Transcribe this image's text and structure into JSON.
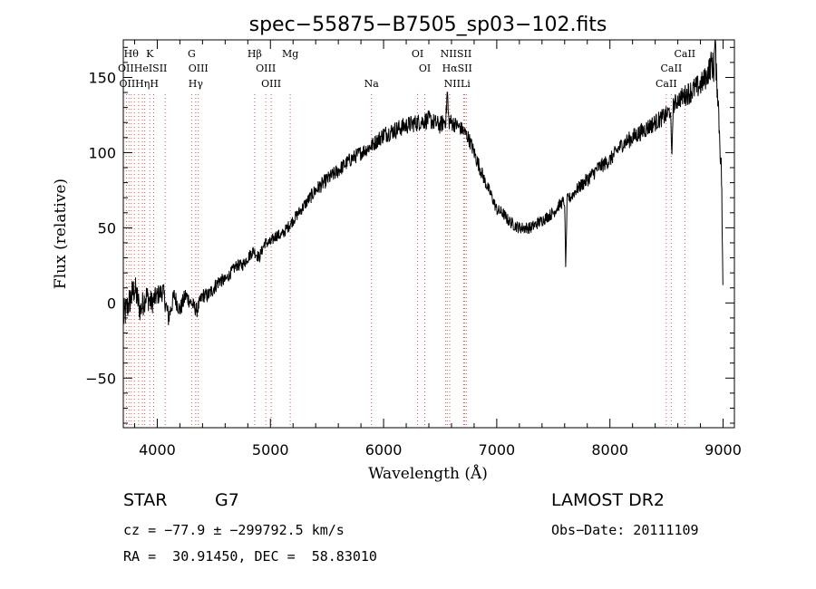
{
  "chart_data": {
    "type": "line",
    "title": "spec−55875−B7505_sp03−102.fits",
    "xlabel": "Wavelength (Å)",
    "ylabel": "Flux (relative)",
    "xlim": [
      3700,
      9100
    ],
    "ylim": [
      -83,
      175
    ],
    "x_ticks": [
      4000,
      5000,
      6000,
      7000,
      8000,
      9000
    ],
    "y_ticks": [
      -50,
      0,
      50,
      100,
      150
    ],
    "y_tick_labels": [
      "−50",
      "0",
      "50",
      "100",
      "150"
    ],
    "grid": false,
    "series": [
      {
        "x": [
          3700,
          3750,
          3800,
          3850,
          3900,
          3950,
          4000,
          4050,
          4100,
          4150,
          4200,
          4250,
          4300,
          4350,
          4400,
          4450,
          4500,
          4550,
          4600,
          4650,
          4700,
          4750,
          4800,
          4850,
          4900,
          4950,
          5000,
          5050,
          5100,
          5150,
          5200,
          5300,
          5400,
          5500,
          5600,
          5700,
          5800,
          5900,
          6000,
          6100,
          6200,
          6300,
          6400,
          6500,
          6550,
          6600,
          6650,
          6700,
          6750,
          6800,
          6850,
          6900,
          6950,
          7000,
          7050,
          7100,
          7150,
          7200,
          7300,
          7400,
          7500,
          7550,
          7600,
          7650,
          7700,
          7800,
          7900,
          8000,
          8100,
          8200,
          8300,
          8400,
          8500,
          8550,
          8600,
          8700,
          8800,
          8850,
          8900,
          8950,
          9000
        ],
        "y": [
          -10,
          0,
          10,
          -5,
          5,
          0,
          5,
          8,
          -10,
          5,
          -5,
          5,
          0,
          -5,
          5,
          5,
          10,
          15,
          15,
          20,
          25,
          25,
          30,
          35,
          30,
          40,
          40,
          45,
          45,
          50,
          55,
          65,
          75,
          82,
          88,
          95,
          100,
          105,
          112,
          115,
          118,
          120,
          122,
          118,
          122,
          120,
          118,
          115,
          110,
          100,
          90,
          80,
          72,
          62,
          60,
          55,
          52,
          50,
          50,
          55,
          60,
          65,
          68,
          70,
          75,
          82,
          90,
          95,
          105,
          110,
          115,
          120,
          125,
          130,
          135,
          140,
          145,
          150,
          160,
          145,
          60
        ],
        "noise": [
          12,
          10,
          10,
          9,
          9,
          8,
          7,
          7,
          7,
          6,
          6,
          6,
          5,
          5,
          5,
          5,
          5,
          5,
          4,
          4,
          4,
          4,
          4,
          4,
          4,
          4,
          4,
          4,
          4,
          4,
          4,
          4,
          5,
          5,
          5,
          5,
          5,
          5,
          6,
          6,
          6,
          6,
          6,
          6,
          6,
          6,
          5,
          5,
          5,
          5,
          5,
          4,
          4,
          4,
          4,
          4,
          4,
          4,
          4,
          4,
          4,
          4,
          4,
          4,
          4,
          5,
          5,
          5,
          5,
          6,
          6,
          6,
          6,
          6,
          6,
          8,
          8,
          8,
          10,
          10,
          10
        ],
        "features": [
          {
            "wavelength": 7610,
            "depth": -45
          },
          {
            "wavelength": 8546,
            "depth": -35
          },
          {
            "wavelength": 6563,
            "depth": 20
          },
          {
            "wavelength": 8930,
            "depth": 25
          },
          {
            "wavelength": 9000,
            "depth": -70
          }
        ]
      }
    ],
    "spectral_lines": [
      {
        "wavelength": 3727,
        "labels": [
          "OII"
        ]
      },
      {
        "wavelength": 3750,
        "labels": [
          "OII"
        ]
      },
      {
        "wavelength": 3770,
        "labels": [
          "Hθ"
        ]
      },
      {
        "wavelength": 3798,
        "labels": [
          "Hη"
        ]
      },
      {
        "wavelength": 3835,
        "labels": [
          "Hη"
        ]
      },
      {
        "wavelength": 3869,
        "labels": [
          "HeI"
        ]
      },
      {
        "wavelength": 3889,
        "labels": [
          "HeI"
        ]
      },
      {
        "wavelength": 3934,
        "labels": [
          "K"
        ]
      },
      {
        "wavelength": 3968,
        "labels": [
          "H"
        ]
      },
      {
        "wavelength": 4070,
        "labels": [
          "SII"
        ]
      },
      {
        "wavelength": 4304,
        "labels": [
          "G"
        ]
      },
      {
        "wavelength": 4340,
        "labels": [
          "Hγ"
        ]
      },
      {
        "wavelength": 4363,
        "labels": [
          "OIII"
        ]
      },
      {
        "wavelength": 4861,
        "labels": [
          "Hβ"
        ]
      },
      {
        "wavelength": 4959,
        "labels": [
          "OIII"
        ]
      },
      {
        "wavelength": 5007,
        "labels": [
          "OIII"
        ]
      },
      {
        "wavelength": 5175,
        "labels": [
          "Mg"
        ]
      },
      {
        "wavelength": 5893,
        "labels": [
          "Na"
        ]
      },
      {
        "wavelength": 6300,
        "labels": [
          "OI"
        ]
      },
      {
        "wavelength": 6364,
        "labels": [
          "OI"
        ]
      },
      {
        "wavelength": 6548,
        "labels": [
          "NII"
        ]
      },
      {
        "wavelength": 6563,
        "labels": [
          "Hα"
        ]
      },
      {
        "wavelength": 6584,
        "labels": [
          "NII"
        ]
      },
      {
        "wavelength": 6708,
        "labels": [
          "Li"
        ]
      },
      {
        "wavelength": 6717,
        "labels": [
          "SII"
        ]
      },
      {
        "wavelength": 6731,
        "labels": [
          "SII"
        ]
      },
      {
        "wavelength": 8498,
        "labels": [
          "CaII"
        ]
      },
      {
        "wavelength": 8542,
        "labels": [
          "CaII"
        ]
      },
      {
        "wavelength": 8662,
        "labels": [
          "CaII"
        ]
      }
    ],
    "line_label_rows": [
      [
        {
          "text": "Hθ",
          "wavelength": 3770
        },
        {
          "text": "K",
          "wavelength": 3934
        },
        {
          "text": "G",
          "wavelength": 4304
        },
        {
          "text": "Hβ",
          "wavelength": 4861
        },
        {
          "text": "Mg",
          "wavelength": 5175
        },
        {
          "text": "OI",
          "wavelength": 6300
        },
        {
          "text": "NIISII",
          "wavelength": 6640
        },
        {
          "text": "CaII",
          "wavelength": 8662
        }
      ],
      [
        {
          "text": "OIIHeISII",
          "wavelength": 3870
        },
        {
          "text": "OIII",
          "wavelength": 4363
        },
        {
          "text": "OIII",
          "wavelength": 4959
        },
        {
          "text": "OI",
          "wavelength": 6364
        },
        {
          "text": "HαSII",
          "wavelength": 6650
        },
        {
          "text": "CaII",
          "wavelength": 8542
        }
      ],
      [
        {
          "text": "OIIHηH",
          "wavelength": 3838
        },
        {
          "text": "Hγ",
          "wavelength": 4340
        },
        {
          "text": "OIII",
          "wavelength": 5007
        },
        {
          "text": "Na",
          "wavelength": 5893
        },
        {
          "text": "NIILi",
          "wavelength": 6650
        },
        {
          "text": "CaII",
          "wavelength": 8498
        }
      ]
    ]
  },
  "info": {
    "object_type": "STAR",
    "subclass": "G7",
    "survey": "LAMOST DR2",
    "cz_line": "cz = −77.9 ± −299792.5 km/s",
    "obs_date": "Obs−Date: 20111109",
    "coords": "RA =  30.91450, DEC =  58.83010"
  },
  "colors": {
    "spectrum": "#000000",
    "line_marker": "#d9534f",
    "axes": "#000000"
  }
}
